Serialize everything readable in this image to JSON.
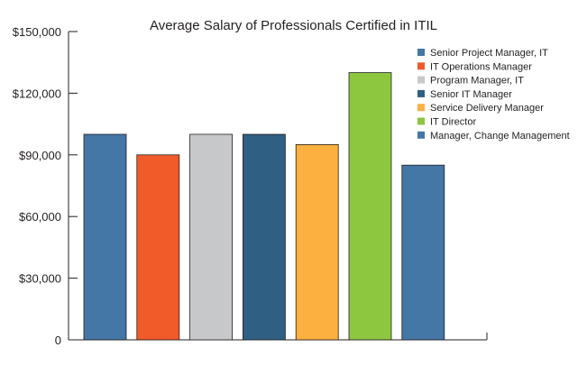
{
  "chart_data": {
    "type": "bar",
    "title": "Average Salary of Professionals Certified in ITIL",
    "xlabel": "",
    "ylabel": "",
    "ylim": [
      0,
      150000
    ],
    "yticks": [
      {
        "value": 0,
        "label": "0"
      },
      {
        "value": 30000,
        "label": "$30,000"
      },
      {
        "value": 60000,
        "label": "$60,000"
      },
      {
        "value": 90000,
        "label": "$90,000"
      },
      {
        "value": 120000,
        "label": "$120,000"
      },
      {
        "value": 150000,
        "label": "$150,000"
      }
    ],
    "grid": false,
    "legend_position": "top-right",
    "categories": [
      "Senior Project Manager, IT",
      "IT Operations Manager",
      "Program Manager, IT",
      "Senior IT Manager",
      "Service Delivery Manager",
      "IT Director",
      "Manager, Change Management"
    ],
    "values": [
      100000,
      90000,
      100000,
      100000,
      95000,
      130000,
      85000
    ],
    "colors": [
      "#4476a6",
      "#f15a29",
      "#c7c8ca",
      "#2f5f82",
      "#fbb040",
      "#8dc63f",
      "#4476a6"
    ],
    "axis_color": "#231f20",
    "text_color": "#231f20"
  }
}
